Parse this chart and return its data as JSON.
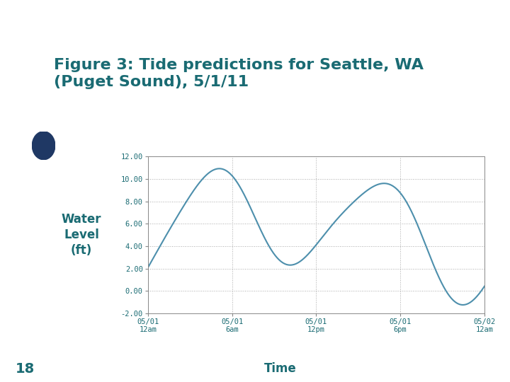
{
  "title_line1": "Figure 3: Tide predictions for Seattle, WA",
  "title_line2": "(Puget Sound), 5/1/11",
  "ylabel_lines": [
    "Water",
    "Level",
    "(ft)"
  ],
  "xlabel": "Time",
  "bottom_label": "18",
  "ylim": [
    -2.0,
    12.0
  ],
  "yticks": [
    -2.0,
    0.0,
    2.0,
    4.0,
    6.0,
    8.0,
    10.0,
    12.0
  ],
  "xtick_labels": [
    "05/01\n12am",
    "05/01\n6am",
    "05/01\n12pm",
    "05/01\n6pm",
    "05/02\n12am"
  ],
  "line_color": "#4d8fac",
  "grid_color": "#aaaaaa",
  "title_color": "#1a6b73",
  "header_bar_color": "#1f3864",
  "slide_bg_color": "#ffffff",
  "green_rect_color": "#90b878",
  "ylabel_color": "#1a6b73",
  "xlabel_color": "#1a6b73",
  "bottom_label_color": "#1a6b73",
  "tick_color": "#1a6b73",
  "title_box_color": "#ffffff"
}
